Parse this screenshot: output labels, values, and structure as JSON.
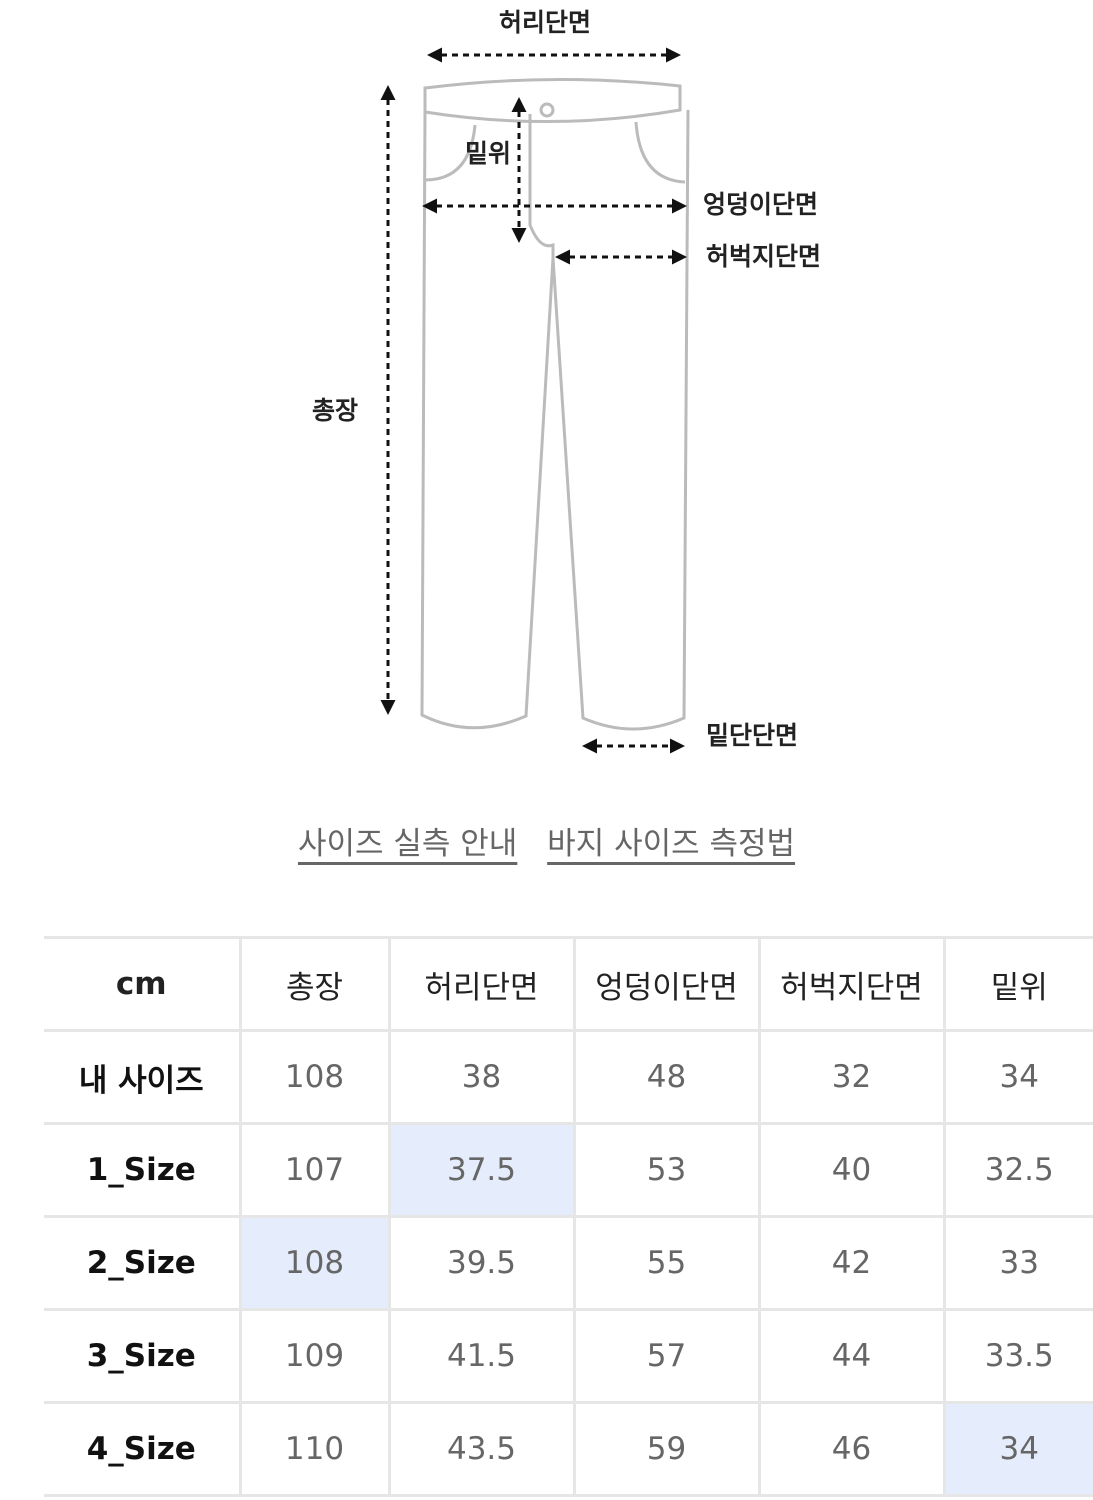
{
  "diagram": {
    "labels": {
      "waist": "허리단면",
      "rise": "밑위",
      "hip": "엉덩이단면",
      "thigh": "허벅지단면",
      "length": "총장",
      "hem": "밑단단면"
    }
  },
  "links": [
    "사이즈 실측 안내",
    "바지 사이즈 측정법"
  ],
  "table": {
    "header": [
      "cm",
      "총장",
      "허리단면",
      "엉덩이단면",
      "허벅지단면",
      "밑위"
    ],
    "rows": [
      [
        "내 사이즈",
        108,
        38,
        48,
        32,
        34
      ],
      [
        "1_Size",
        107,
        37.5,
        53,
        40,
        32.5
      ],
      [
        "2_Size",
        108,
        39.5,
        55,
        42,
        33
      ],
      [
        "3_Size",
        109,
        41.5,
        57,
        44,
        33.5
      ],
      [
        "4_Size",
        110,
        43.5,
        59,
        46,
        34
      ]
    ],
    "highlighted_cells": [
      [
        1,
        2
      ],
      [
        2,
        1
      ],
      [
        4,
        5
      ]
    ],
    "highlight_color": "#e5ecfb"
  }
}
